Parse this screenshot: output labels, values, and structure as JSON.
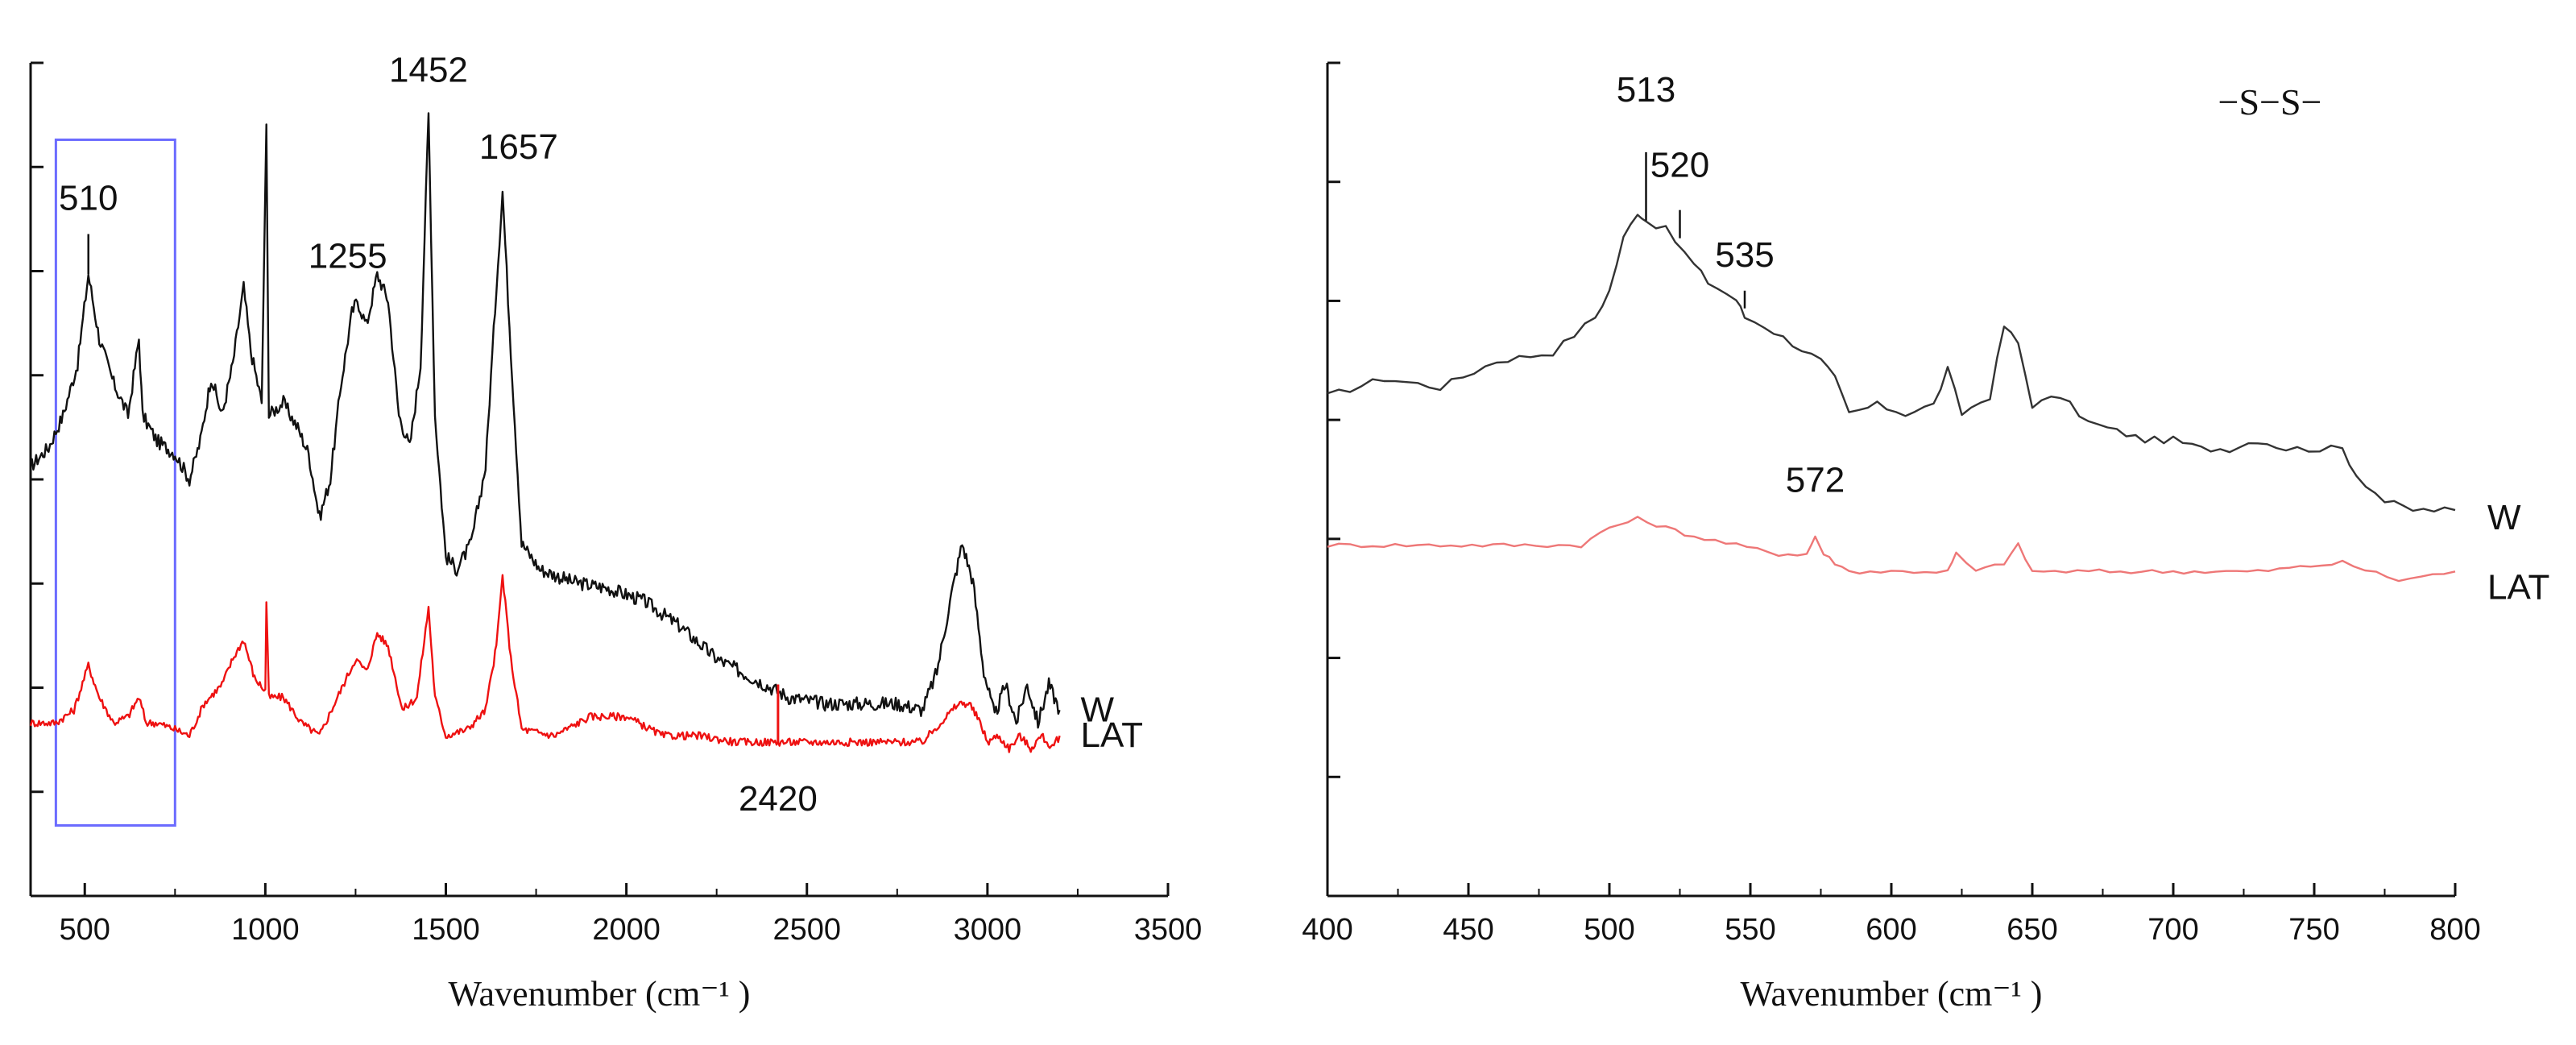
{
  "chart_data": [
    {
      "type": "line",
      "title": "",
      "xlabel": "Wavenumber (cm⁻¹ )",
      "ylabel": "",
      "xlim": [
        350,
        3500
      ],
      "xticks": [
        500,
        1000,
        1500,
        2000,
        2500,
        3000,
        3500
      ],
      "yticks": 8,
      "highlight_range": [
        420,
        750
      ],
      "highlight_color": "#6b6bff",
      "series": [
        {
          "name": "W",
          "color": "#111111",
          "points": [
            [
              350,
              0.42
            ],
            [
              400,
              0.45
            ],
            [
              440,
              0.5
            ],
            [
              480,
              0.58
            ],
            [
              510,
              0.72
            ],
            [
              540,
              0.62
            ],
            [
              580,
              0.55
            ],
            [
              620,
              0.5
            ],
            [
              650,
              0.62
            ],
            [
              660,
              0.5
            ],
            [
              700,
              0.46
            ],
            [
              750,
              0.44
            ],
            [
              790,
              0.4
            ],
            [
              820,
              0.46
            ],
            [
              850,
              0.56
            ],
            [
              880,
              0.5
            ],
            [
              910,
              0.58
            ],
            [
              940,
              0.7
            ],
            [
              960,
              0.6
            ],
            [
              990,
              0.52
            ],
            [
              1003,
              0.95
            ],
            [
              1010,
              0.5
            ],
            [
              1050,
              0.52
            ],
            [
              1090,
              0.48
            ],
            [
              1120,
              0.44
            ],
            [
              1150,
              0.34
            ],
            [
              1180,
              0.4
            ],
            [
              1210,
              0.55
            ],
            [
              1240,
              0.66
            ],
            [
              1255,
              0.68
            ],
            [
              1280,
              0.64
            ],
            [
              1310,
              0.72
            ],
            [
              1340,
              0.68
            ],
            [
              1370,
              0.5
            ],
            [
              1400,
              0.45
            ],
            [
              1430,
              0.58
            ],
            [
              1452,
              0.97
            ],
            [
              1470,
              0.5
            ],
            [
              1500,
              0.28
            ],
            [
              1530,
              0.26
            ],
            [
              1570,
              0.3
            ],
            [
              1610,
              0.42
            ],
            [
              1640,
              0.7
            ],
            [
              1657,
              0.85
            ],
            [
              1680,
              0.6
            ],
            [
              1710,
              0.3
            ],
            [
              1760,
              0.26
            ],
            [
              1850,
              0.24
            ],
            [
              1950,
              0.23
            ],
            [
              2050,
              0.21
            ],
            [
              2150,
              0.17
            ],
            [
              2250,
              0.12
            ],
            [
              2350,
              0.09
            ],
            [
              2450,
              0.06
            ],
            [
              2550,
              0.05
            ],
            [
              2650,
              0.05
            ],
            [
              2750,
              0.05
            ],
            [
              2820,
              0.04
            ],
            [
              2860,
              0.1
            ],
            [
              2900,
              0.22
            ],
            [
              2930,
              0.3
            ],
            [
              2960,
              0.24
            ],
            [
              2990,
              0.1
            ],
            [
              3020,
              0.03
            ],
            [
              3050,
              0.08
            ],
            [
              3080,
              0.02
            ],
            [
              3110,
              0.08
            ],
            [
              3140,
              0.02
            ],
            [
              3170,
              0.08
            ],
            [
              3200,
              0.04
            ]
          ]
        },
        {
          "name": "LAT",
          "color": "#ee1111",
          "points": [
            [
              350,
              0.02
            ],
            [
              420,
              0.02
            ],
            [
              470,
              0.04
            ],
            [
              510,
              0.11
            ],
            [
              540,
              0.06
            ],
            [
              580,
              0.02
            ],
            [
              620,
              0.03
            ],
            [
              650,
              0.06
            ],
            [
              670,
              0.02
            ],
            [
              700,
              0.02
            ],
            [
              750,
              0.01
            ],
            [
              790,
              0.0
            ],
            [
              830,
              0.05
            ],
            [
              880,
              0.08
            ],
            [
              910,
              0.12
            ],
            [
              940,
              0.15
            ],
            [
              970,
              0.09
            ],
            [
              1000,
              0.07
            ],
            [
              1003,
              0.21
            ],
            [
              1010,
              0.06
            ],
            [
              1050,
              0.06
            ],
            [
              1100,
              0.02
            ],
            [
              1150,
              0.0
            ],
            [
              1200,
              0.06
            ],
            [
              1250,
              0.12
            ],
            [
              1280,
              0.1
            ],
            [
              1310,
              0.16
            ],
            [
              1340,
              0.14
            ],
            [
              1380,
              0.04
            ],
            [
              1420,
              0.06
            ],
            [
              1452,
              0.2
            ],
            [
              1470,
              0.06
            ],
            [
              1500,
              0.0
            ],
            [
              1560,
              0.01
            ],
            [
              1610,
              0.04
            ],
            [
              1640,
              0.14
            ],
            [
              1657,
              0.25
            ],
            [
              1680,
              0.12
            ],
            [
              1710,
              0.01
            ],
            [
              1800,
              0.0
            ],
            [
              1900,
              0.03
            ],
            [
              2000,
              0.03
            ],
            [
              2100,
              0.0
            ],
            [
              2200,
              0.0
            ],
            [
              2300,
              -0.01
            ],
            [
              2420,
              -0.01
            ],
            [
              2500,
              -0.01
            ],
            [
              2600,
              -0.01
            ],
            [
              2700,
              -0.01
            ],
            [
              2820,
              -0.01
            ],
            [
              2870,
              0.02
            ],
            [
              2920,
              0.05
            ],
            [
              2950,
              0.05
            ],
            [
              2980,
              0.02
            ],
            [
              3000,
              -0.01
            ],
            [
              3030,
              0.0
            ],
            [
              3060,
              -0.02
            ],
            [
              3090,
              0.0
            ],
            [
              3120,
              -0.02
            ],
            [
              3150,
              0.0
            ],
            [
              3180,
              -0.02
            ],
            [
              3200,
              0.0
            ]
          ]
        }
      ],
      "spike": {
        "x": 2420,
        "from": -0.01,
        "to": 0.08
      },
      "annotations": [
        {
          "text": "510",
          "x": 510,
          "y": 0.72
        },
        {
          "text": "1452",
          "x": 1452,
          "y": 0.97
        },
        {
          "text": "1657",
          "x": 1657,
          "y": 0.85
        },
        {
          "text": "1255",
          "x": 1255,
          "y": 0.68
        },
        {
          "text": "2420",
          "x": 2420,
          "y": -0.01
        }
      ]
    },
    {
      "type": "line",
      "title": "−S−S−",
      "xlabel": "Wavenumber (cm⁻¹ )",
      "ylabel": "",
      "xlim": [
        400,
        800
      ],
      "xticks": [
        400,
        450,
        500,
        550,
        600,
        650,
        700,
        750,
        800
      ],
      "yticks": 7,
      "series": [
        {
          "name": "W",
          "color": "#333333",
          "points": [
            [
              400,
              0.62
            ],
            [
              420,
              0.64
            ],
            [
              440,
              0.63
            ],
            [
              460,
              0.66
            ],
            [
              480,
              0.67
            ],
            [
              495,
              0.71
            ],
            [
              500,
              0.74
            ],
            [
              505,
              0.8
            ],
            [
              510,
              0.83
            ],
            [
              513,
              0.82
            ],
            [
              520,
              0.81
            ],
            [
              530,
              0.77
            ],
            [
              535,
              0.75
            ],
            [
              545,
              0.73
            ],
            [
              548,
              0.71
            ],
            [
              555,
              0.7
            ],
            [
              565,
              0.68
            ],
            [
              575,
              0.66
            ],
            [
              580,
              0.64
            ],
            [
              585,
              0.6
            ],
            [
              595,
              0.61
            ],
            [
              605,
              0.6
            ],
            [
              615,
              0.61
            ],
            [
              620,
              0.65
            ],
            [
              625,
              0.6
            ],
            [
              635,
              0.62
            ],
            [
              640,
              0.7
            ],
            [
              645,
              0.68
            ],
            [
              650,
              0.61
            ],
            [
              660,
              0.62
            ],
            [
              670,
              0.59
            ],
            [
              680,
              0.58
            ],
            [
              690,
              0.57
            ],
            [
              700,
              0.57
            ],
            [
              710,
              0.56
            ],
            [
              720,
              0.56
            ],
            [
              730,
              0.57
            ],
            [
              740,
              0.56
            ],
            [
              760,
              0.56
            ],
            [
              765,
              0.53
            ],
            [
              775,
              0.5
            ],
            [
              785,
              0.49
            ],
            [
              800,
              0.49
            ]
          ]
        },
        {
          "name": "LAT",
          "color": "#ee7777",
          "points": [
            [
              400,
              0.45
            ],
            [
              440,
              0.45
            ],
            [
              470,
              0.45
            ],
            [
              490,
              0.45
            ],
            [
              500,
              0.47
            ],
            [
              510,
              0.48
            ],
            [
              520,
              0.47
            ],
            [
              530,
              0.46
            ],
            [
              545,
              0.45
            ],
            [
              560,
              0.44
            ],
            [
              570,
              0.44
            ],
            [
              573,
              0.46
            ],
            [
              576,
              0.44
            ],
            [
              580,
              0.43
            ],
            [
              585,
              0.42
            ],
            [
              600,
              0.42
            ],
            [
              620,
              0.42
            ],
            [
              623,
              0.44
            ],
            [
              630,
              0.42
            ],
            [
              640,
              0.43
            ],
            [
              645,
              0.45
            ],
            [
              650,
              0.42
            ],
            [
              670,
              0.42
            ],
            [
              700,
              0.42
            ],
            [
              730,
              0.42
            ],
            [
              760,
              0.43
            ],
            [
              780,
              0.41
            ],
            [
              800,
              0.42
            ]
          ]
        }
      ],
      "annotations": [
        {
          "text": "513",
          "x": 513,
          "y": 0.82
        },
        {
          "text": "520",
          "x": 525,
          "y": 0.8
        },
        {
          "text": "535",
          "x": 548,
          "y": 0.72
        },
        {
          "text": "572",
          "x": 573,
          "y": 0.46
        }
      ]
    }
  ]
}
